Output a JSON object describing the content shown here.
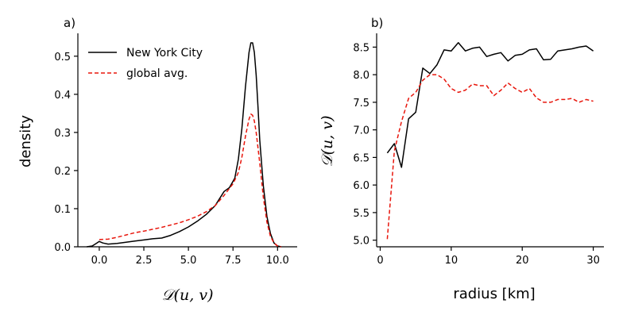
{
  "colors": {
    "black": "#000000",
    "red": "#e8160c"
  },
  "chart_data": [
    {
      "type": "line",
      "panel_label": "a)",
      "xlabel": "𝒟(u, v)",
      "ylabel": "density",
      "xlim": [
        -1.2,
        11.1
      ],
      "ylim": [
        0,
        0.56
      ],
      "xticks": [
        0.0,
        2.5,
        5.0,
        7.5,
        10.0
      ],
      "xtick_labels": [
        "0.0",
        "2.5",
        "5.0",
        "7.5",
        "10.0"
      ],
      "yticks": [
        0.0,
        0.1,
        0.2,
        0.3,
        0.4,
        0.5
      ],
      "ytick_labels": [
        "0.0",
        "0.1",
        "0.2",
        "0.3",
        "0.4",
        "0.5"
      ],
      "legend_position": "top-left",
      "series": [
        {
          "name": "New York City",
          "style": "solid",
          "color": "#000000",
          "x": [
            -0.7,
            -0.4,
            -0.2,
            0.0,
            0.2,
            0.5,
            1.0,
            1.5,
            2.0,
            2.5,
            3.0,
            3.5,
            4.0,
            4.5,
            5.0,
            5.5,
            6.0,
            6.5,
            7.0,
            7.3,
            7.6,
            7.8,
            8.0,
            8.2,
            8.4,
            8.5,
            8.6,
            8.7,
            8.8,
            8.9,
            9.0,
            9.2,
            9.4,
            9.6,
            9.8,
            10.0,
            10.2
          ],
          "y": [
            0.0,
            0.002,
            0.008,
            0.014,
            0.01,
            0.007,
            0.009,
            0.012,
            0.015,
            0.018,
            0.021,
            0.023,
            0.03,
            0.04,
            0.052,
            0.067,
            0.085,
            0.108,
            0.145,
            0.155,
            0.18,
            0.23,
            0.31,
            0.42,
            0.51,
            0.535,
            0.535,
            0.51,
            0.45,
            0.37,
            0.28,
            0.16,
            0.08,
            0.035,
            0.01,
            0.002,
            0.0
          ]
        },
        {
          "name": "global avg.",
          "style": "dashed",
          "color": "#e8160c",
          "x": [
            0.0,
            0.5,
            1.0,
            1.5,
            2.0,
            2.5,
            3.0,
            3.5,
            4.0,
            4.5,
            5.0,
            5.5,
            6.0,
            6.5,
            7.0,
            7.5,
            7.8,
            8.0,
            8.2,
            8.4,
            8.5,
            8.6,
            8.7,
            8.8,
            9.0,
            9.2,
            9.4,
            9.6,
            9.8,
            10.0,
            10.2
          ],
          "y": [
            0.019,
            0.02,
            0.025,
            0.031,
            0.037,
            0.041,
            0.046,
            0.051,
            0.057,
            0.063,
            0.071,
            0.08,
            0.092,
            0.108,
            0.135,
            0.165,
            0.195,
            0.235,
            0.29,
            0.335,
            0.348,
            0.345,
            0.33,
            0.3,
            0.22,
            0.13,
            0.065,
            0.028,
            0.01,
            0.002,
            0.0
          ]
        }
      ]
    },
    {
      "type": "line",
      "panel_label": "b)",
      "xlabel": "radius [km]",
      "ylabel": "𝒟(u, v)",
      "xlim": [
        -0.5,
        31.5
      ],
      "ylim": [
        4.88,
        8.75
      ],
      "xticks": [
        0,
        10,
        20,
        30
      ],
      "xtick_labels": [
        "0",
        "10",
        "20",
        "30"
      ],
      "yticks": [
        5.0,
        5.5,
        6.0,
        6.5,
        7.0,
        7.5,
        8.0,
        8.5
      ],
      "ytick_labels": [
        "5.0",
        "5.5",
        "6.0",
        "6.5",
        "7.0",
        "7.5",
        "8.0",
        "8.5"
      ],
      "series": [
        {
          "name": "New York City",
          "style": "solid",
          "color": "#000000",
          "x": [
            1,
            2,
            3,
            4,
            5,
            6,
            7,
            8,
            9,
            10,
            11,
            12,
            13,
            14,
            15,
            16,
            17,
            18,
            19,
            20,
            21,
            22,
            23,
            24,
            25,
            26,
            27,
            28,
            29,
            30
          ],
          "y": [
            6.58,
            6.75,
            6.32,
            7.2,
            7.32,
            8.12,
            8.02,
            8.18,
            8.45,
            8.43,
            8.58,
            8.43,
            8.48,
            8.5,
            8.33,
            8.37,
            8.4,
            8.25,
            8.35,
            8.37,
            8.45,
            8.47,
            8.27,
            8.28,
            8.43,
            8.45,
            8.47,
            8.5,
            8.52,
            8.43
          ]
        },
        {
          "name": "global avg.",
          "style": "dashed",
          "color": "#e8160c",
          "x": [
            1,
            2,
            3,
            4,
            5,
            6,
            7,
            8,
            9,
            10,
            11,
            12,
            13,
            14,
            15,
            16,
            17,
            18,
            19,
            20,
            21,
            22,
            23,
            24,
            25,
            26,
            27,
            28,
            29,
            30
          ],
          "y": [
            5.02,
            6.62,
            7.15,
            7.57,
            7.68,
            7.9,
            8.0,
            8.0,
            7.92,
            7.75,
            7.68,
            7.72,
            7.83,
            7.8,
            7.8,
            7.62,
            7.72,
            7.85,
            7.75,
            7.68,
            7.75,
            7.58,
            7.5,
            7.5,
            7.55,
            7.55,
            7.57,
            7.5,
            7.55,
            7.52
          ]
        }
      ]
    }
  ]
}
